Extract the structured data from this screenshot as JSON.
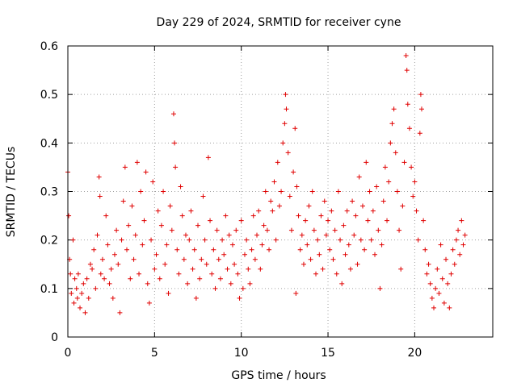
{
  "chart_data": {
    "type": "scatter",
    "title": "Day 229 of 2024, SRMTID for receiver cyne",
    "xlabel": "GPS time / hours",
    "ylabel": "SRMTID / TECUs",
    "xlim": [
      0,
      24.5
    ],
    "ylim": [
      0,
      0.6
    ],
    "x_ticks": [
      0,
      5,
      10,
      15,
      20
    ],
    "y_ticks": [
      0,
      0.1,
      0.2,
      0.3,
      0.4,
      0.5,
      0.6
    ],
    "x_tick_labels": [
      "0",
      "5",
      "10",
      "15",
      "20"
    ],
    "y_tick_labels": [
      "0",
      "0.1",
      "0.2",
      "0.3",
      "0.4",
      "0.5",
      "0.6"
    ],
    "grid": true,
    "marker": "+",
    "color": "#e00000",
    "series": [
      {
        "name": "SRMTID",
        "points": [
          [
            0.0,
            0.34
          ],
          [
            0.05,
            0.25
          ],
          [
            0.1,
            0.16
          ],
          [
            0.15,
            0.13
          ],
          [
            0.2,
            0.09
          ],
          [
            0.3,
            0.2
          ],
          [
            0.35,
            0.07
          ],
          [
            0.4,
            0.12
          ],
          [
            0.5,
            0.1
          ],
          [
            0.55,
            0.08
          ],
          [
            0.6,
            0.13
          ],
          [
            0.7,
            0.06
          ],
          [
            0.8,
            0.09
          ],
          [
            0.9,
            0.11
          ],
          [
            1.0,
            0.05
          ],
          [
            1.1,
            0.12
          ],
          [
            1.2,
            0.08
          ],
          [
            1.3,
            0.15
          ],
          [
            1.4,
            0.14
          ],
          [
            1.5,
            0.18
          ],
          [
            1.6,
            0.1
          ],
          [
            1.7,
            0.21
          ],
          [
            1.8,
            0.33
          ],
          [
            1.85,
            0.29
          ],
          [
            1.9,
            0.13
          ],
          [
            2.0,
            0.16
          ],
          [
            2.1,
            0.12
          ],
          [
            2.2,
            0.25
          ],
          [
            2.3,
            0.19
          ],
          [
            2.4,
            0.11
          ],
          [
            2.5,
            0.14
          ],
          [
            2.6,
            0.08
          ],
          [
            2.7,
            0.17
          ],
          [
            2.8,
            0.22
          ],
          [
            2.9,
            0.15
          ],
          [
            3.0,
            0.05
          ],
          [
            3.1,
            0.2
          ],
          [
            3.2,
            0.28
          ],
          [
            3.3,
            0.35
          ],
          [
            3.4,
            0.18
          ],
          [
            3.5,
            0.23
          ],
          [
            3.6,
            0.12
          ],
          [
            3.7,
            0.27
          ],
          [
            3.8,
            0.16
          ],
          [
            3.9,
            0.21
          ],
          [
            4.0,
            0.36
          ],
          [
            4.1,
            0.13
          ],
          [
            4.2,
            0.3
          ],
          [
            4.3,
            0.19
          ],
          [
            4.4,
            0.24
          ],
          [
            4.5,
            0.34
          ],
          [
            4.6,
            0.11
          ],
          [
            4.7,
            0.07
          ],
          [
            4.8,
            0.2
          ],
          [
            4.9,
            0.32
          ],
          [
            5.0,
            0.14
          ],
          [
            5.1,
            0.17
          ],
          [
            5.2,
            0.26
          ],
          [
            5.3,
            0.12
          ],
          [
            5.4,
            0.23
          ],
          [
            5.5,
            0.3
          ],
          [
            5.6,
            0.15
          ],
          [
            5.7,
            0.19
          ],
          [
            5.8,
            0.09
          ],
          [
            5.9,
            0.27
          ],
          [
            6.0,
            0.22
          ],
          [
            6.1,
            0.46
          ],
          [
            6.15,
            0.4
          ],
          [
            6.2,
            0.35
          ],
          [
            6.3,
            0.18
          ],
          [
            6.4,
            0.13
          ],
          [
            6.5,
            0.31
          ],
          [
            6.6,
            0.25
          ],
          [
            6.7,
            0.16
          ],
          [
            6.8,
            0.21
          ],
          [
            6.9,
            0.11
          ],
          [
            7.0,
            0.2
          ],
          [
            7.1,
            0.26
          ],
          [
            7.2,
            0.14
          ],
          [
            7.3,
            0.18
          ],
          [
            7.4,
            0.08
          ],
          [
            7.5,
            0.23
          ],
          [
            7.6,
            0.12
          ],
          [
            7.7,
            0.16
          ],
          [
            7.8,
            0.29
          ],
          [
            7.9,
            0.2
          ],
          [
            8.0,
            0.15
          ],
          [
            8.1,
            0.37
          ],
          [
            8.2,
            0.24
          ],
          [
            8.3,
            0.13
          ],
          [
            8.4,
            0.18
          ],
          [
            8.5,
            0.1
          ],
          [
            8.6,
            0.22
          ],
          [
            8.7,
            0.16
          ],
          [
            8.8,
            0.12
          ],
          [
            8.9,
            0.2
          ],
          [
            9.0,
            0.17
          ],
          [
            9.1,
            0.25
          ],
          [
            9.2,
            0.14
          ],
          [
            9.3,
            0.21
          ],
          [
            9.4,
            0.11
          ],
          [
            9.5,
            0.19
          ],
          [
            9.6,
            0.15
          ],
          [
            9.7,
            0.22
          ],
          [
            9.8,
            0.13
          ],
          [
            9.9,
            0.08
          ],
          [
            10.0,
            0.24
          ],
          [
            10.1,
            0.1
          ],
          [
            10.2,
            0.17
          ],
          [
            10.3,
            0.2
          ],
          [
            10.4,
            0.14
          ],
          [
            10.5,
            0.11
          ],
          [
            10.6,
            0.18
          ],
          [
            10.7,
            0.25
          ],
          [
            10.8,
            0.16
          ],
          [
            10.9,
            0.21
          ],
          [
            11.0,
            0.26
          ],
          [
            11.1,
            0.14
          ],
          [
            11.2,
            0.19
          ],
          [
            11.3,
            0.23
          ],
          [
            11.4,
            0.3
          ],
          [
            11.5,
            0.22
          ],
          [
            11.6,
            0.18
          ],
          [
            11.7,
            0.28
          ],
          [
            11.8,
            0.26
          ],
          [
            11.9,
            0.32
          ],
          [
            12.0,
            0.2
          ],
          [
            12.1,
            0.36
          ],
          [
            12.2,
            0.27
          ],
          [
            12.3,
            0.3
          ],
          [
            12.4,
            0.4
          ],
          [
            12.5,
            0.44
          ],
          [
            12.55,
            0.5
          ],
          [
            12.6,
            0.47
          ],
          [
            12.7,
            0.38
          ],
          [
            12.8,
            0.29
          ],
          [
            12.9,
            0.22
          ],
          [
            13.0,
            0.34
          ],
          [
            13.1,
            0.43
          ],
          [
            13.15,
            0.09
          ],
          [
            13.2,
            0.31
          ],
          [
            13.3,
            0.25
          ],
          [
            13.4,
            0.18
          ],
          [
            13.5,
            0.21
          ],
          [
            13.6,
            0.15
          ],
          [
            13.7,
            0.24
          ],
          [
            13.8,
            0.19
          ],
          [
            13.9,
            0.27
          ],
          [
            14.0,
            0.16
          ],
          [
            14.1,
            0.3
          ],
          [
            14.2,
            0.22
          ],
          [
            14.3,
            0.13
          ],
          [
            14.4,
            0.2
          ],
          [
            14.5,
            0.17
          ],
          [
            14.6,
            0.25
          ],
          [
            14.7,
            0.14
          ],
          [
            14.8,
            0.28
          ],
          [
            14.9,
            0.21
          ],
          [
            15.0,
            0.24
          ],
          [
            15.1,
            0.18
          ],
          [
            15.2,
            0.26
          ],
          [
            15.3,
            0.16
          ],
          [
            15.4,
            0.22
          ],
          [
            15.5,
            0.13
          ],
          [
            15.6,
            0.3
          ],
          [
            15.7,
            0.2
          ],
          [
            15.8,
            0.11
          ],
          [
            15.9,
            0.23
          ],
          [
            16.0,
            0.17
          ],
          [
            16.1,
            0.26
          ],
          [
            16.2,
            0.19
          ],
          [
            16.3,
            0.14
          ],
          [
            16.4,
            0.28
          ],
          [
            16.5,
            0.21
          ],
          [
            16.6,
            0.25
          ],
          [
            16.7,
            0.15
          ],
          [
            16.8,
            0.33
          ],
          [
            16.9,
            0.2
          ],
          [
            17.0,
            0.27
          ],
          [
            17.1,
            0.18
          ],
          [
            17.2,
            0.36
          ],
          [
            17.3,
            0.24
          ],
          [
            17.4,
            0.3
          ],
          [
            17.5,
            0.2
          ],
          [
            17.6,
            0.26
          ],
          [
            17.7,
            0.17
          ],
          [
            17.8,
            0.31
          ],
          [
            17.9,
            0.22
          ],
          [
            18.0,
            0.1
          ],
          [
            18.1,
            0.19
          ],
          [
            18.2,
            0.28
          ],
          [
            18.3,
            0.35
          ],
          [
            18.4,
            0.24
          ],
          [
            18.5,
            0.32
          ],
          [
            18.6,
            0.4
          ],
          [
            18.7,
            0.44
          ],
          [
            18.8,
            0.47
          ],
          [
            18.9,
            0.38
          ],
          [
            19.0,
            0.3
          ],
          [
            19.1,
            0.22
          ],
          [
            19.2,
            0.14
          ],
          [
            19.3,
            0.27
          ],
          [
            19.4,
            0.36
          ],
          [
            19.5,
            0.58
          ],
          [
            19.55,
            0.55
          ],
          [
            19.6,
            0.48
          ],
          [
            19.7,
            0.43
          ],
          [
            19.8,
            0.35
          ],
          [
            19.9,
            0.29
          ],
          [
            20.0,
            0.32
          ],
          [
            20.1,
            0.26
          ],
          [
            20.2,
            0.2
          ],
          [
            20.3,
            0.42
          ],
          [
            20.35,
            0.5
          ],
          [
            20.4,
            0.47
          ],
          [
            20.5,
            0.24
          ],
          [
            20.6,
            0.18
          ],
          [
            20.7,
            0.13
          ],
          [
            20.8,
            0.15
          ],
          [
            20.9,
            0.11
          ],
          [
            21.0,
            0.08
          ],
          [
            21.1,
            0.06
          ],
          [
            21.2,
            0.1
          ],
          [
            21.3,
            0.14
          ],
          [
            21.4,
            0.09
          ],
          [
            21.5,
            0.19
          ],
          [
            21.6,
            0.12
          ],
          [
            21.7,
            0.07
          ],
          [
            21.8,
            0.16
          ],
          [
            21.9,
            0.11
          ],
          [
            22.0,
            0.06
          ],
          [
            22.1,
            0.13
          ],
          [
            22.2,
            0.18
          ],
          [
            22.3,
            0.15
          ],
          [
            22.4,
            0.2
          ],
          [
            22.5,
            0.22
          ],
          [
            22.6,
            0.17
          ],
          [
            22.7,
            0.24
          ],
          [
            22.8,
            0.19
          ],
          [
            22.9,
            0.21
          ]
        ]
      }
    ]
  }
}
